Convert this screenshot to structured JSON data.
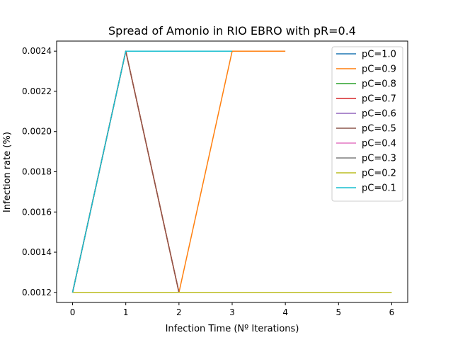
{
  "chart_data": {
    "type": "line",
    "title": "Spread of Amonio in RIO EBRO with pR=0.4",
    "xlabel": "Infection Time (Nº Iterations)",
    "ylabel": "Infection rate (%)",
    "xlim": [
      -0.3,
      6.3
    ],
    "ylim": [
      0.00115,
      0.00245
    ],
    "xticks": [
      0,
      1,
      2,
      3,
      4,
      5,
      6
    ],
    "xtick_labels": [
      "0",
      "1",
      "2",
      "3",
      "4",
      "5",
      "6"
    ],
    "yticks": [
      0.0012,
      0.0014,
      0.0016,
      0.0018,
      0.002,
      0.0022,
      0.0024
    ],
    "ytick_labels": [
      "0.0012",
      "0.0014",
      "0.0016",
      "0.0018",
      "0.0020",
      "0.0022",
      "0.0024"
    ],
    "grid": false,
    "legend_position": "top-right",
    "series": [
      {
        "name": "pC=1.0",
        "color": "#1f77b4",
        "x": [
          0,
          1,
          2,
          3
        ],
        "y": [
          0.0012,
          0.0024,
          0.0024,
          0.0024
        ]
      },
      {
        "name": "pC=0.9",
        "color": "#ff7f0e",
        "x": [
          0,
          1,
          2,
          3,
          4
        ],
        "y": [
          0.0012,
          0.0024,
          0.0012,
          0.0024,
          0.0024
        ]
      },
      {
        "name": "pC=0.8",
        "color": "#2ca02c",
        "x": [
          0,
          1,
          2,
          3,
          4
        ],
        "y": [
          0.0012,
          0.0012,
          0.0012,
          0.0012,
          0.0012
        ]
      },
      {
        "name": "pC=0.7",
        "color": "#d62728",
        "x": [
          0,
          1,
          2
        ],
        "y": [
          0.0012,
          0.0024,
          0.0012
        ]
      },
      {
        "name": "pC=0.6",
        "color": "#9467bd",
        "x": [
          0,
          1,
          2,
          3,
          4
        ],
        "y": [
          0.0012,
          0.0012,
          0.0012,
          0.0012,
          0.0012
        ]
      },
      {
        "name": "pC=0.5",
        "color": "#8c564b",
        "x": [
          0,
          1,
          2
        ],
        "y": [
          0.0012,
          0.0024,
          0.0012
        ]
      },
      {
        "name": "pC=0.4",
        "color": "#e377c2",
        "x": [
          0,
          1,
          2,
          3,
          4
        ],
        "y": [
          0.0012,
          0.0012,
          0.0012,
          0.0012,
          0.0012
        ]
      },
      {
        "name": "pC=0.3",
        "color": "#7f7f7f",
        "x": [
          0,
          1,
          2,
          3,
          4
        ],
        "y": [
          0.0012,
          0.0012,
          0.0012,
          0.0012,
          0.0012
        ]
      },
      {
        "name": "pC=0.2",
        "color": "#bcbd22",
        "x": [
          0,
          1,
          2,
          3,
          4,
          5,
          6
        ],
        "y": [
          0.0012,
          0.0012,
          0.0012,
          0.0012,
          0.0012,
          0.0012,
          0.0012
        ]
      },
      {
        "name": "pC=0.1",
        "color": "#17becf",
        "x": [
          0,
          1,
          2,
          3
        ],
        "y": [
          0.0012,
          0.0024,
          0.0024,
          0.0024
        ]
      }
    ]
  }
}
